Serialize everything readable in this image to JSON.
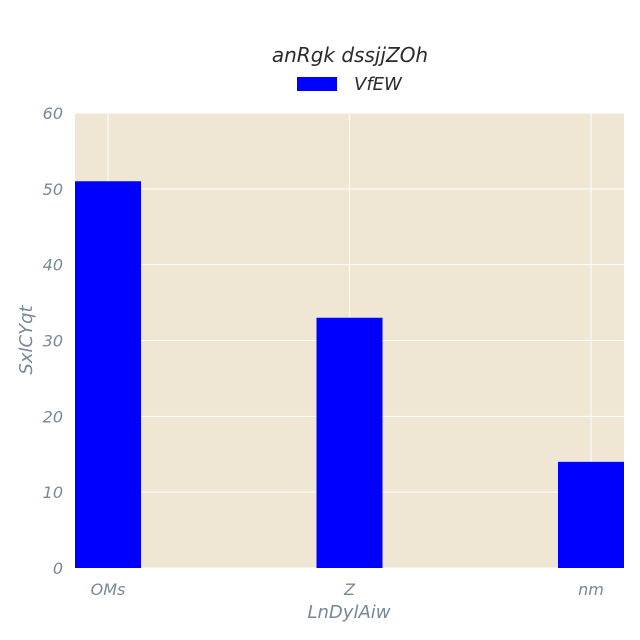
{
  "chart_data": {
    "type": "bar",
    "title": "anRgk dssjjZOh",
    "xlabel": "LnDylAiw",
    "ylabel": "SxlCYqt",
    "categories": [
      "OMs",
      "Z",
      "nm"
    ],
    "series": [
      {
        "name": "VfEW",
        "values": [
          51,
          33,
          14
        ]
      }
    ],
    "ylim": [
      0,
      60
    ],
    "yticks": [
      0,
      10,
      20,
      30,
      40,
      50,
      60
    ],
    "grid": true,
    "legend": "top-center",
    "colors": {
      "bar": "#0000ff",
      "plot_bg": "#efe6d3",
      "grid": "#ffffff",
      "tick_text": "#778899"
    }
  }
}
